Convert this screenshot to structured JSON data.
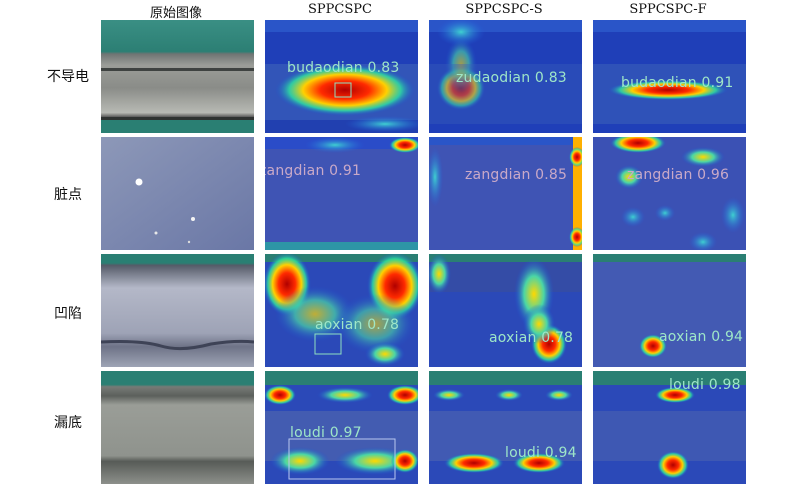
{
  "columns": [
    "原始图像",
    "SPPCSPC",
    "SPPCSPC-S",
    "SPPCSPC-F"
  ],
  "rows": [
    "不导电",
    "脏点",
    "凹陷",
    "漏底"
  ],
  "detections": {
    "r0c1": "budaodian 0.83",
    "r0c2": "zudaodian 0.83",
    "r0c3": "budaodian 0.91",
    "r1c1": "zangdian 0.91",
    "r1c2": "zangdian 0.85",
    "r1c3": "zangdian 0.96",
    "r2c1": "aoxian 0.78",
    "r2c2": "aoxian 0.78",
    "r2c3": "aoxian 0.94",
    "r3c1": "loudi 0.97",
    "r3c2": "loudi 0.94",
    "r3c3": "loudi 0.98"
  }
}
